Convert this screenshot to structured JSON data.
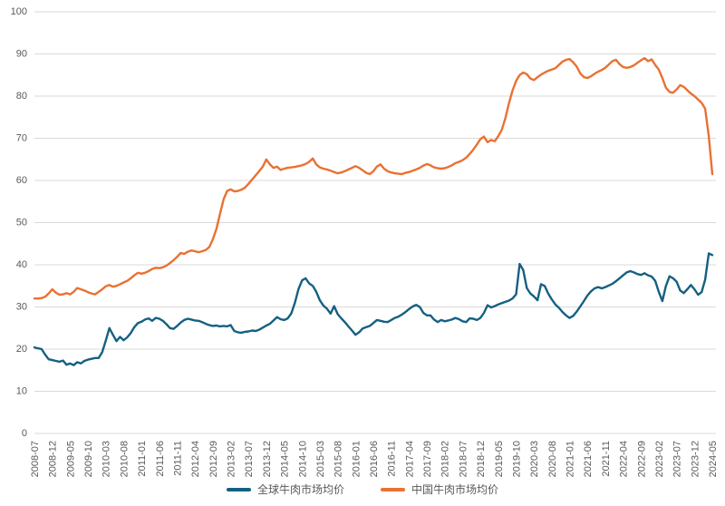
{
  "colors": {
    "background": "#FFFFFF",
    "gridline": "#D9D9D9",
    "tick_label": "#595959",
    "series_global": "#156082",
    "series_china": "#E97132"
  },
  "legend": {
    "items": [
      {
        "label": "全球牛肉市场均价"
      },
      {
        "label": "中国牛肉市场均价"
      }
    ]
  },
  "chart_data": {
    "type": "line",
    "title": "",
    "xlabel": "",
    "ylabel": "",
    "x_start": "2008-07",
    "x_end": "2024-05",
    "x_interval": "monthly",
    "x_tick_every": 5,
    "x_tick_labels": [
      "2008-07",
      "2008-12",
      "2009-05",
      "2009-10",
      "2010-03",
      "2010-08",
      "2011-01",
      "2011-06",
      "2011-11",
      "2012-04",
      "2012-09",
      "2013-02",
      "2013-07",
      "2013-12",
      "2014-05",
      "2014-10",
      "2015-03",
      "2015-08",
      "2016-01",
      "2016-06",
      "2016-11",
      "2017-04",
      "2017-09",
      "2018-02",
      "2018-07",
      "2018-12",
      "2019-05",
      "2019-10",
      "2020-03",
      "2020-08",
      "2021-01",
      "2021-06",
      "2021-11",
      "2022-04",
      "2022-09",
      "2023-02",
      "2023-07",
      "2023-12",
      "2024-05"
    ],
    "ylim": [
      0,
      100
    ],
    "y_ticks": [
      0,
      10,
      20,
      30,
      40,
      50,
      60,
      70,
      80,
      90,
      100
    ],
    "grid": "horizontal",
    "legend_position": "bottom-center",
    "series": [
      {
        "name": "全球牛肉市场均价",
        "color": "#156082",
        "values": [
          20.4,
          20.2,
          20.0,
          18.7,
          17.6,
          17.4,
          17.2,
          17.0,
          17.3,
          16.3,
          16.6,
          16.2,
          16.9,
          16.6,
          17.2,
          17.5,
          17.7,
          17.9,
          17.9,
          19.3,
          22.0,
          25.0,
          23.4,
          21.9,
          22.9,
          22.1,
          22.8,
          23.8,
          25.2,
          26.2,
          26.5,
          27.0,
          27.3,
          26.7,
          27.4,
          27.2,
          26.7,
          25.9,
          25.0,
          24.8,
          25.5,
          26.3,
          26.9,
          27.2,
          27.0,
          26.8,
          26.7,
          26.4,
          26.0,
          25.7,
          25.5,
          25.6,
          25.4,
          25.5,
          25.4,
          25.7,
          24.3,
          24.0,
          23.9,
          24.1,
          24.2,
          24.4,
          24.3,
          24.6,
          25.1,
          25.6,
          26.0,
          26.8,
          27.6,
          27.1,
          26.9,
          27.3,
          28.5,
          31.0,
          34.2,
          36.3,
          36.8,
          35.6,
          35.0,
          33.6,
          31.6,
          30.3,
          29.6,
          28.4,
          30.2,
          28.3,
          27.3,
          26.4,
          25.4,
          24.4,
          23.4,
          24.0,
          24.9,
          25.2,
          25.5,
          26.2,
          26.9,
          26.7,
          26.5,
          26.4,
          26.9,
          27.4,
          27.7,
          28.2,
          28.8,
          29.5,
          30.1,
          30.5,
          30.0,
          28.6,
          28.0,
          28.0,
          27.0,
          26.4,
          26.9,
          26.6,
          26.8,
          27.0,
          27.4,
          27.1,
          26.6,
          26.4,
          27.3,
          27.2,
          26.9,
          27.4,
          28.6,
          30.4,
          29.9,
          30.2,
          30.6,
          30.9,
          31.2,
          31.5,
          32.0,
          33.0,
          40.2,
          38.8,
          34.5,
          33.2,
          32.5,
          31.6,
          35.4,
          35.0,
          33.2,
          31.8,
          30.6,
          29.8,
          28.8,
          28.0,
          27.4,
          27.9,
          28.9,
          30.1,
          31.4,
          32.7,
          33.7,
          34.4,
          34.7,
          34.4,
          34.7,
          35.1,
          35.5,
          36.1,
          36.8,
          37.5,
          38.2,
          38.5,
          38.2,
          37.8,
          37.6,
          38.0,
          37.5,
          37.2,
          36.2,
          33.6,
          31.4,
          35.0,
          37.3,
          36.8,
          36.0,
          33.9,
          33.3,
          34.2,
          35.2,
          34.2,
          32.9,
          33.5,
          36.5,
          42.7,
          42.3
        ]
      },
      {
        "name": "中国牛肉市场均价",
        "color": "#E97132",
        "values": [
          32.0,
          32.0,
          32.1,
          32.4,
          33.2,
          34.2,
          33.4,
          32.9,
          33.0,
          33.3,
          33.0,
          33.6,
          34.5,
          34.2,
          33.9,
          33.5,
          33.2,
          33.0,
          33.6,
          34.2,
          34.9,
          35.2,
          34.8,
          35.0,
          35.4,
          35.8,
          36.2,
          36.8,
          37.5,
          38.1,
          37.9,
          38.1,
          38.5,
          39.0,
          39.3,
          39.2,
          39.4,
          39.8,
          40.4,
          41.1,
          41.9,
          42.8,
          42.6,
          43.1,
          43.4,
          43.2,
          43.0,
          43.2,
          43.5,
          44.2,
          46.0,
          48.5,
          52.0,
          55.5,
          57.5,
          57.9,
          57.4,
          57.5,
          57.8,
          58.3,
          59.2,
          60.2,
          61.2,
          62.2,
          63.3,
          65.0,
          63.8,
          63.0,
          63.3,
          62.5,
          62.8,
          63.0,
          63.1,
          63.2,
          63.4,
          63.6,
          63.9,
          64.4,
          65.2,
          63.8,
          63.1,
          62.8,
          62.6,
          62.3,
          62.0,
          61.7,
          61.9,
          62.2,
          62.6,
          63.0,
          63.4,
          63.0,
          62.4,
          61.8,
          61.5,
          62.2,
          63.3,
          63.8,
          62.8,
          62.2,
          61.9,
          61.7,
          61.6,
          61.5,
          61.8,
          62.0,
          62.3,
          62.6,
          63.0,
          63.5,
          63.9,
          63.6,
          63.1,
          62.9,
          62.8,
          62.9,
          63.2,
          63.6,
          64.1,
          64.4,
          64.8,
          65.4,
          66.3,
          67.3,
          68.5,
          69.8,
          70.4,
          69.1,
          69.6,
          69.3,
          70.5,
          72.0,
          74.8,
          78.3,
          81.3,
          83.6,
          85.0,
          85.6,
          85.2,
          84.2,
          83.8,
          84.5,
          85.1,
          85.6,
          86.0,
          86.3,
          86.6,
          87.4,
          88.2,
          88.6,
          88.8,
          88.0,
          87.0,
          85.4,
          84.5,
          84.3,
          84.7,
          85.3,
          85.8,
          86.2,
          86.7,
          87.5,
          88.3,
          88.6,
          87.6,
          86.9,
          86.7,
          86.9,
          87.3,
          87.9,
          88.5,
          89.0,
          88.3,
          88.7,
          87.4,
          86.3,
          84.3,
          82.0,
          81.0,
          80.8,
          81.6,
          82.6,
          82.2,
          81.4,
          80.6,
          80.0,
          79.2,
          78.4,
          77.0,
          70.5,
          61.5
        ]
      }
    ]
  }
}
